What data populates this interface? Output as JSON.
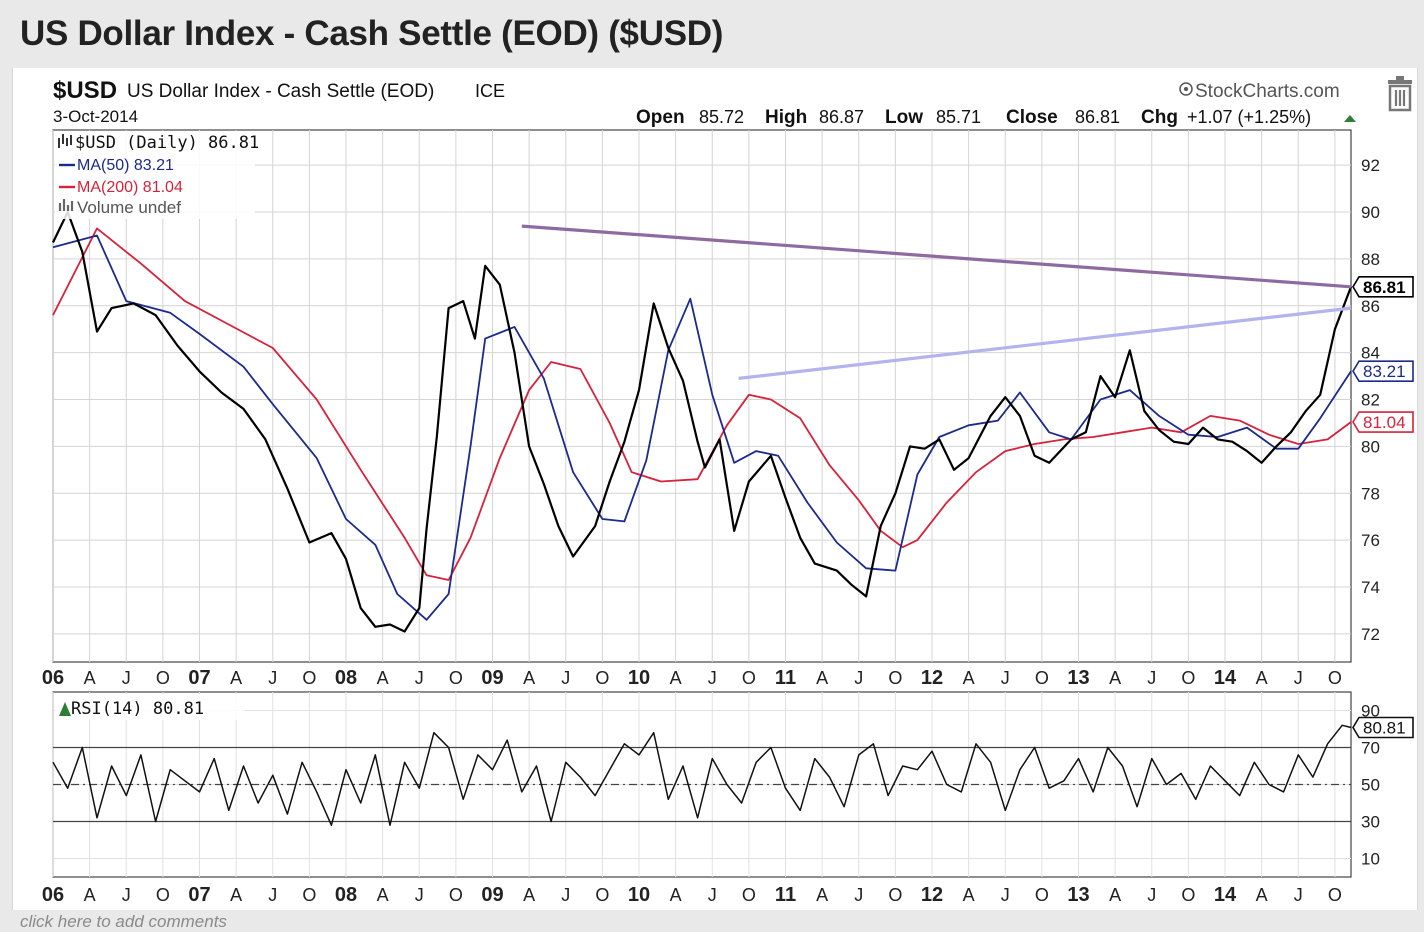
{
  "page": {
    "title": "US Dollar Index - Cash Settle (EOD) ($USD)",
    "footer_link": "click here to add comments"
  },
  "header": {
    "symbol": "$USD",
    "name": "US Dollar Index - Cash Settle (EOD)",
    "exchange": "ICE",
    "date": "3-Oct-2014",
    "watermark": "StockCharts.com",
    "open_label": "Open",
    "open": "85.72",
    "high_label": "High",
    "high": "86.87",
    "low_label": "Low",
    "low": "85.71",
    "close_label": "Close",
    "close": "86.81",
    "chg_label": "Chg",
    "chg": "+1.07 (+1.25%)"
  },
  "legend": {
    "price": "$USD (Daily) 86.81",
    "ma50": "MA(50) 83.21",
    "ma200": "MA(200) 81.04",
    "volume": "Volume undef"
  },
  "rsi_legend": "RSI(14) 80.81",
  "colors": {
    "price": "#000000",
    "ma50": "#1b2a8c",
    "ma200": "#d6223a",
    "resistance": "#8e6aa0",
    "support": "#b3b3ee",
    "rsi_fill": "#2e7d32"
  },
  "chart_data": [
    {
      "type": "line",
      "title": "US Dollar Index - Cash Settle (EOD)",
      "ylim": [
        70.8,
        93.5
      ],
      "yticks": [
        72,
        74,
        76,
        78,
        80,
        82,
        84,
        86,
        88,
        90,
        92
      ],
      "x_tick_labels": [
        "06",
        "A",
        "J",
        "O",
        "07",
        "A",
        "J",
        "O",
        "08",
        "A",
        "J",
        "O",
        "09",
        "A",
        "J",
        "O",
        "10",
        "A",
        "J",
        "O",
        "11",
        "A",
        "J",
        "O",
        "12",
        "A",
        "J",
        "O",
        "13",
        "A",
        "J",
        "O",
        "14",
        "A",
        "J",
        "O"
      ],
      "x_range": [
        2006.0,
        2014.86
      ],
      "last_value_labels": [
        {
          "name": "$USD",
          "value": "86.81"
        },
        {
          "name": "MA(50)",
          "value": "83.21"
        },
        {
          "name": "MA(200)",
          "value": "81.04"
        }
      ],
      "series": [
        {
          "name": "$USD (Daily)",
          "x": [
            2006.0,
            2006.1,
            2006.2,
            2006.3,
            2006.4,
            2006.55,
            2006.7,
            2006.85,
            2007.0,
            2007.15,
            2007.3,
            2007.45,
            2007.6,
            2007.75,
            2007.9,
            2008.0,
            2008.1,
            2008.2,
            2008.3,
            2008.4,
            2008.5,
            2008.55,
            2008.62,
            2008.7,
            2008.8,
            2008.88,
            2008.95,
            2009.05,
            2009.15,
            2009.25,
            2009.35,
            2009.45,
            2009.55,
            2009.7,
            2009.8,
            2009.9,
            2010.0,
            2010.1,
            2010.2,
            2010.3,
            2010.4,
            2010.45,
            2010.55,
            2010.65,
            2010.75,
            2010.9,
            2011.0,
            2011.1,
            2011.2,
            2011.35,
            2011.45,
            2011.55,
            2011.65,
            2011.75,
            2011.85,
            2011.95,
            2012.05,
            2012.15,
            2012.25,
            2012.4,
            2012.5,
            2012.6,
            2012.7,
            2012.8,
            2012.95,
            2013.05,
            2013.15,
            2013.25,
            2013.35,
            2013.45,
            2013.55,
            2013.65,
            2013.75,
            2013.85,
            2013.95,
            2014.05,
            2014.15,
            2014.25,
            2014.35,
            2014.45,
            2014.55,
            2014.65,
            2014.75,
            2014.86
          ],
          "values": [
            88.7,
            90.0,
            88.3,
            84.9,
            85.9,
            86.1,
            85.6,
            84.3,
            83.2,
            82.3,
            81.6,
            80.3,
            78.2,
            75.9,
            76.3,
            75.2,
            73.1,
            72.3,
            72.4,
            72.1,
            73.1,
            76.5,
            80.4,
            85.9,
            86.2,
            84.6,
            87.7,
            86.9,
            84.0,
            80.0,
            78.4,
            76.6,
            75.3,
            76.6,
            78.5,
            80.2,
            82.4,
            86.1,
            84.2,
            82.8,
            80.2,
            79.1,
            80.3,
            76.4,
            78.5,
            79.6,
            77.8,
            76.1,
            75.0,
            74.7,
            74.1,
            73.6,
            76.6,
            78.0,
            80.0,
            79.9,
            80.3,
            79.0,
            79.5,
            81.3,
            82.1,
            81.3,
            79.6,
            79.3,
            80.3,
            80.6,
            83.0,
            82.1,
            84.1,
            81.5,
            80.7,
            80.2,
            80.1,
            80.8,
            80.3,
            80.2,
            79.8,
            79.3,
            80.0,
            80.6,
            81.5,
            82.2,
            85.0,
            86.81
          ]
        },
        {
          "name": "MA(50)",
          "x": [
            2006.0,
            2006.3,
            2006.5,
            2006.8,
            2007.0,
            2007.3,
            2007.5,
            2007.8,
            2008.0,
            2008.2,
            2008.35,
            2008.55,
            2008.7,
            2008.85,
            2008.95,
            2009.15,
            2009.35,
            2009.55,
            2009.75,
            2009.9,
            2010.05,
            2010.2,
            2010.35,
            2010.5,
            2010.65,
            2010.8,
            2010.95,
            2011.15,
            2011.35,
            2011.55,
            2011.75,
            2011.9,
            2012.05,
            2012.25,
            2012.45,
            2012.6,
            2012.8,
            2012.95,
            2013.15,
            2013.35,
            2013.55,
            2013.75,
            2013.95,
            2014.15,
            2014.35,
            2014.5,
            2014.65,
            2014.86
          ],
          "values": [
            88.5,
            89.0,
            86.2,
            85.7,
            84.8,
            83.4,
            81.8,
            79.5,
            76.9,
            75.8,
            73.7,
            72.6,
            73.7,
            80.0,
            84.6,
            85.1,
            82.9,
            78.9,
            76.9,
            76.8,
            79.4,
            84.1,
            86.3,
            82.2,
            79.3,
            79.8,
            79.6,
            77.6,
            75.9,
            74.8,
            74.7,
            78.8,
            80.4,
            80.9,
            81.1,
            82.3,
            80.6,
            80.3,
            82.0,
            82.4,
            81.3,
            80.5,
            80.4,
            80.8,
            79.9,
            79.9,
            81.2,
            83.21
          ]
        },
        {
          "name": "MA(200)",
          "x": [
            2006.0,
            2006.3,
            2006.6,
            2006.9,
            2007.2,
            2007.5,
            2007.8,
            2008.1,
            2008.4,
            2008.55,
            2008.7,
            2008.85,
            2009.05,
            2009.25,
            2009.4,
            2009.6,
            2009.8,
            2009.95,
            2010.15,
            2010.4,
            2010.6,
            2010.75,
            2010.9,
            2011.1,
            2011.3,
            2011.5,
            2011.65,
            2011.8,
            2011.9,
            2012.1,
            2012.3,
            2012.5,
            2012.7,
            2012.9,
            2013.1,
            2013.3,
            2013.5,
            2013.7,
            2013.9,
            2014.1,
            2014.3,
            2014.5,
            2014.7,
            2014.86
          ],
          "values": [
            85.6,
            89.3,
            87.8,
            86.2,
            85.2,
            84.2,
            82.0,
            79.0,
            76.1,
            74.5,
            74.3,
            76.1,
            79.5,
            82.4,
            83.6,
            83.3,
            81.0,
            78.9,
            78.5,
            78.6,
            80.9,
            82.2,
            82.0,
            81.2,
            79.2,
            77.7,
            76.4,
            75.7,
            76.0,
            77.6,
            78.9,
            79.8,
            80.1,
            80.3,
            80.4,
            80.6,
            80.8,
            80.6,
            81.3,
            81.1,
            80.5,
            80.1,
            80.3,
            81.04
          ]
        },
        {
          "name": "Resistance trendline",
          "x": [
            2009.2,
            2014.86
          ],
          "values": [
            89.4,
            86.81
          ]
        },
        {
          "name": "Support trendline",
          "x": [
            2010.68,
            2014.86
          ],
          "values": [
            82.9,
            85.9
          ]
        }
      ]
    },
    {
      "type": "line",
      "title": "RSI(14)",
      "ylim": [
        0,
        100
      ],
      "yticks": [
        10,
        30,
        50,
        70,
        90
      ],
      "reference_lines": [
        30,
        50,
        70
      ],
      "last_value_label": "80.81",
      "series": [
        {
          "name": "RSI(14)",
          "x": [
            2006.0,
            2006.1,
            2006.2,
            2006.3,
            2006.4,
            2006.5,
            2006.6,
            2006.7,
            2006.8,
            2006.9,
            2007.0,
            2007.1,
            2007.2,
            2007.3,
            2007.4,
            2007.5,
            2007.6,
            2007.7,
            2007.8,
            2007.9,
            2008.0,
            2008.1,
            2008.2,
            2008.3,
            2008.4,
            2008.5,
            2008.6,
            2008.7,
            2008.8,
            2008.9,
            2009.0,
            2009.1,
            2009.2,
            2009.3,
            2009.4,
            2009.5,
            2009.6,
            2009.7,
            2009.8,
            2009.9,
            2010.0,
            2010.1,
            2010.2,
            2010.3,
            2010.4,
            2010.5,
            2010.6,
            2010.7,
            2010.8,
            2010.9,
            2011.0,
            2011.1,
            2011.2,
            2011.3,
            2011.4,
            2011.5,
            2011.6,
            2011.7,
            2011.8,
            2011.9,
            2012.0,
            2012.1,
            2012.2,
            2012.3,
            2012.4,
            2012.5,
            2012.6,
            2012.7,
            2012.8,
            2012.9,
            2013.0,
            2013.1,
            2013.2,
            2013.3,
            2013.4,
            2013.5,
            2013.6,
            2013.7,
            2013.8,
            2013.9,
            2014.0,
            2014.1,
            2014.2,
            2014.3,
            2014.4,
            2014.5,
            2014.6,
            2014.7,
            2014.8,
            2014.86
          ],
          "values": [
            62,
            48,
            70,
            32,
            60,
            44,
            66,
            30,
            58,
            52,
            46,
            64,
            36,
            60,
            40,
            55,
            34,
            62,
            46,
            28,
            58,
            40,
            66,
            28,
            62,
            48,
            78,
            70,
            42,
            66,
            58,
            74,
            46,
            60,
            30,
            62,
            54,
            44,
            58,
            72,
            66,
            78,
            42,
            60,
            32,
            64,
            50,
            40,
            62,
            70,
            48,
            36,
            64,
            54,
            38,
            66,
            72,
            44,
            60,
            58,
            68,
            50,
            46,
            72,
            62,
            36,
            58,
            70,
            48,
            52,
            64,
            46,
            70,
            60,
            38,
            64,
            50,
            56,
            42,
            60,
            52,
            44,
            62,
            50,
            46,
            66,
            54,
            72,
            82,
            80.81
          ]
        }
      ]
    }
  ]
}
